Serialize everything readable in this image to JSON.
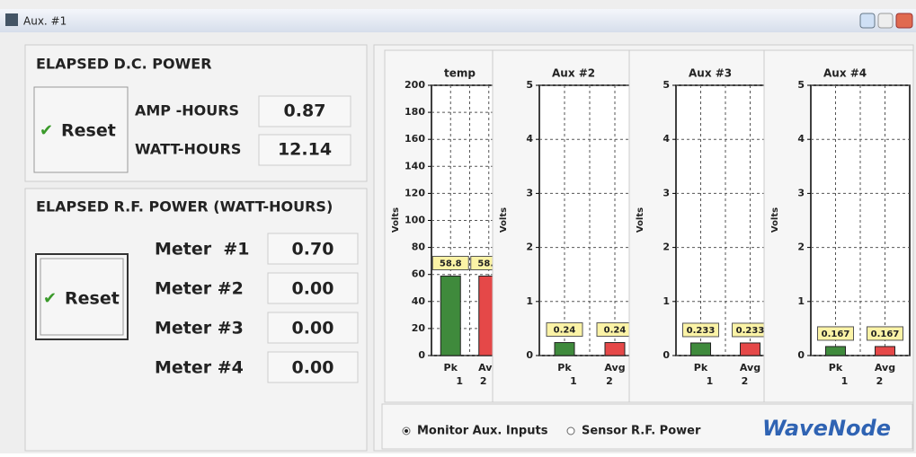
{
  "window": {
    "title": "Aux. #1"
  },
  "dc_power": {
    "title": "ELAPSED D.C. POWER",
    "reset": "Reset",
    "rows": [
      {
        "label": "AMP -HOURS",
        "value": "0.87"
      },
      {
        "label": "WATT-HOURS",
        "value": "12.14"
      }
    ]
  },
  "rf_power": {
    "title": "ELAPSED R.F. POWER (WATT-HOURS)",
    "reset": "Reset",
    "rows": [
      {
        "label": "Meter  #1",
        "value": "0.70"
      },
      {
        "label": "Meter #2",
        "value": "0.00"
      },
      {
        "label": "Meter #3",
        "value": "0.00"
      },
      {
        "label": "Meter #4",
        "value": "0.00"
      }
    ]
  },
  "chart_data": [
    {
      "type": "bar",
      "title": "temp",
      "y_label": "Volts",
      "categories": [
        "Pk",
        "Avg"
      ],
      "channels": [
        "1",
        "2"
      ],
      "values": [
        58.8,
        58.8
      ],
      "colors": [
        "#3f8a3c",
        "#e54848"
      ],
      "ylim": [
        0,
        200
      ],
      "yticks": [
        0,
        20,
        40,
        60,
        80,
        100,
        120,
        140,
        160,
        180,
        200
      ],
      "grid": true
    },
    {
      "type": "bar",
      "title": "Aux #2",
      "y_label": "Volts",
      "categories": [
        "Pk",
        "Avg"
      ],
      "channels": [
        "1",
        "2"
      ],
      "values": [
        0.24,
        0.24
      ],
      "colors": [
        "#3f8a3c",
        "#e54848"
      ],
      "ylim": [
        0,
        5
      ],
      "yticks": [
        0,
        1,
        2,
        3,
        4,
        5
      ],
      "grid": true
    },
    {
      "type": "bar",
      "title": "Aux #3",
      "y_label": "Volts",
      "categories": [
        "Pk",
        "Avg"
      ],
      "channels": [
        "1",
        "2"
      ],
      "values": [
        0.233,
        0.233
      ],
      "colors": [
        "#3f8a3c",
        "#e54848"
      ],
      "ylim": [
        0,
        5
      ],
      "yticks": [
        0,
        1,
        2,
        3,
        4,
        5
      ],
      "grid": true
    },
    {
      "type": "bar",
      "title": "Aux #4",
      "y_label": "Volts",
      "categories": [
        "Pk",
        "Avg"
      ],
      "channels": [
        "1",
        "2"
      ],
      "values": [
        0.167,
        0.167
      ],
      "colors": [
        "#3f8a3c",
        "#e54848"
      ],
      "ylim": [
        0,
        5
      ],
      "yticks": [
        0,
        1,
        2,
        3,
        4,
        5
      ],
      "grid": true
    }
  ],
  "footer": {
    "options": [
      "Monitor Aux. Inputs",
      "Sensor R.F. Power"
    ],
    "selected": 0,
    "brand": "WaveNode"
  }
}
